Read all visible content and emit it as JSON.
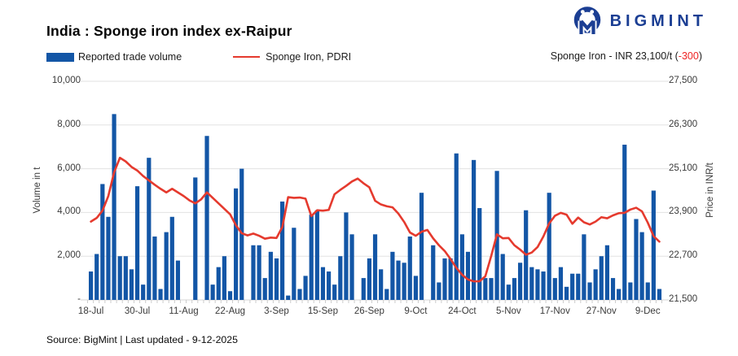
{
  "header": {
    "brand": {
      "name": "BIGMINT",
      "color": "#1b3e93"
    },
    "title": "India : Sponge iron index ex-Raipur",
    "price_callout": {
      "prefix": "Sponge Iron - INR 23,100/t (",
      "change": "-300",
      "suffix": ")",
      "change_color": "#ee2222"
    }
  },
  "legend": [
    {
      "label": "Reported trade volume",
      "type": "bar",
      "color": "#1356a6"
    },
    {
      "label": "Sponge Iron, PDRI",
      "type": "line",
      "color": "#e53a2e"
    }
  ],
  "chart_data": {
    "type": "bar+line",
    "title": "India : Sponge iron index ex-Raipur",
    "grid": "horizontal",
    "x_tick_labels": [
      "18-Jul",
      "30-Jul",
      "11-Aug",
      "22-Aug",
      "3-Sep",
      "15-Sep",
      "26-Sep",
      "9-Oct",
      "24-Oct",
      "5-Nov",
      "17-Nov",
      "27-Nov",
      "9-Dec"
    ],
    "x_tick_every": 8,
    "y_left": {
      "label": "Volume in t",
      "min": 0,
      "max": 10000,
      "ticks": [
        "-",
        "2,000",
        "4,000",
        "6,000",
        "8,000",
        "10,000"
      ]
    },
    "y_right": {
      "label": "Price in INR/t",
      "min": 21500,
      "max": 27500,
      "ticks": [
        "21,500",
        "22,700",
        "23,900",
        "25,100",
        "26,300",
        "27,500"
      ]
    },
    "series": [
      {
        "name": "Reported trade volume",
        "type": "bar",
        "axis": "left",
        "color": "#1356a6",
        "values": [
          1300,
          2100,
          5300,
          3800,
          8500,
          2000,
          2000,
          1400,
          5200,
          700,
          6500,
          2900,
          500,
          3100,
          3800,
          1800,
          0,
          0,
          5600,
          0,
          7500,
          700,
          1500,
          2000,
          400,
          5100,
          6000,
          0,
          2500,
          2500,
          1000,
          2200,
          1900,
          4500,
          200,
          3300,
          500,
          1100,
          3900,
          4100,
          1500,
          1300,
          700,
          2000,
          4000,
          3000,
          0,
          1000,
          1900,
          3000,
          1400,
          500,
          2200,
          1800,
          1700,
          2900,
          1100,
          4900,
          0,
          2500,
          800,
          1900,
          1900,
          6700,
          3000,
          2200,
          6400,
          4200,
          1000,
          1000,
          5900,
          2100,
          700,
          1000,
          1700,
          4100,
          1500,
          1400,
          1300,
          4900,
          1000,
          1500,
          600,
          1200,
          1200,
          3000,
          800,
          1400,
          2000,
          2500,
          1000,
          500,
          7100,
          800,
          3700,
          3100,
          800,
          5000,
          500
        ]
      },
      {
        "name": "Sponge Iron, PDRI",
        "type": "line",
        "axis": "right",
        "color": "#e53a2e",
        "values": [
          23650,
          23750,
          23950,
          24350,
          25000,
          25400,
          25300,
          25150,
          25050,
          24900,
          24780,
          24660,
          24550,
          24450,
          24550,
          24450,
          24350,
          24230,
          24150,
          24260,
          24450,
          24300,
          24150,
          24000,
          23850,
          23550,
          23330,
          23270,
          23320,
          23260,
          23180,
          23210,
          23200,
          23500,
          24320,
          24300,
          24310,
          24280,
          23800,
          23960,
          23950,
          23970,
          24400,
          24520,
          24630,
          24750,
          24830,
          24700,
          24590,
          24220,
          24120,
          24070,
          24040,
          23870,
          23640,
          23350,
          23260,
          23370,
          23420,
          23190,
          23000,
          22840,
          22620,
          22380,
          22190,
          22060,
          22010,
          22010,
          22150,
          22700,
          23300,
          23190,
          23200,
          23000,
          22880,
          22740,
          22800,
          22950,
          23240,
          23600,
          23810,
          23890,
          23840,
          23590,
          23760,
          23630,
          23570,
          23650,
          23770,
          23740,
          23820,
          23880,
          23890,
          23980,
          24030,
          23930,
          23620,
          23250,
          23100
        ]
      }
    ],
    "latest_price_label": "Sponge Iron - INR 23,100/t (-300)"
  },
  "footer": {
    "source": "Source: BigMint | Last updated - 9-12-2025"
  }
}
